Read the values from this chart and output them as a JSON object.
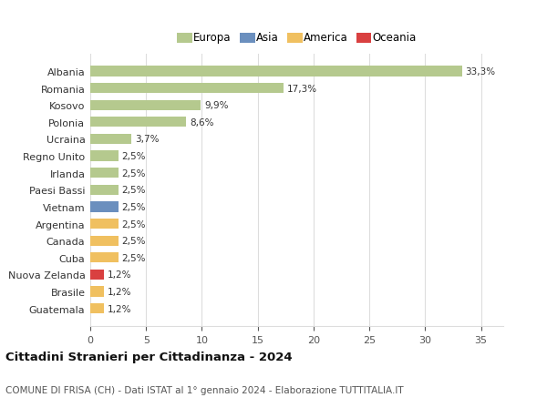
{
  "categories": [
    "Albania",
    "Romania",
    "Kosovo",
    "Polonia",
    "Ucraina",
    "Regno Unito",
    "Irlanda",
    "Paesi Bassi",
    "Vietnam",
    "Argentina",
    "Canada",
    "Cuba",
    "Nuova Zelanda",
    "Brasile",
    "Guatemala"
  ],
  "values": [
    33.3,
    17.3,
    9.9,
    8.6,
    3.7,
    2.5,
    2.5,
    2.5,
    2.5,
    2.5,
    2.5,
    2.5,
    1.2,
    1.2,
    1.2
  ],
  "labels": [
    "33,3%",
    "17,3%",
    "9,9%",
    "8,6%",
    "3,7%",
    "2,5%",
    "2,5%",
    "2,5%",
    "2,5%",
    "2,5%",
    "2,5%",
    "2,5%",
    "1,2%",
    "1,2%",
    "1,2%"
  ],
  "colors": [
    "#b5c98e",
    "#b5c98e",
    "#b5c98e",
    "#b5c98e",
    "#b5c98e",
    "#b5c98e",
    "#b5c98e",
    "#b5c98e",
    "#6b8fbe",
    "#f0c060",
    "#f0c060",
    "#f0c060",
    "#d94040",
    "#f0c060",
    "#f0c060"
  ],
  "legend_labels": [
    "Europa",
    "Asia",
    "America",
    "Oceania"
  ],
  "legend_colors": [
    "#b5c98e",
    "#6b8fbe",
    "#f0c060",
    "#d94040"
  ],
  "title": "Cittadini Stranieri per Cittadinanza - 2024",
  "subtitle": "COMUNE DI FRISA (CH) - Dati ISTAT al 1° gennaio 2024 - Elaborazione TUTTITALIA.IT",
  "xlim": [
    0,
    37
  ],
  "xticks": [
    0,
    5,
    10,
    15,
    20,
    25,
    30,
    35
  ],
  "background_color": "#ffffff",
  "grid_color": "#dddddd"
}
